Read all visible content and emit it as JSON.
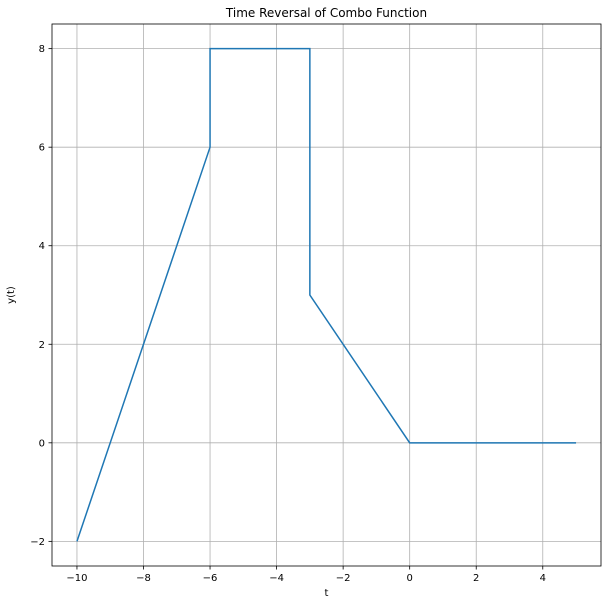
{
  "chart_data": {
    "type": "line",
    "title": "Time Reversal of Combo Function",
    "xlabel": "t",
    "ylabel": "y(t)",
    "xlim": [
      -10.75,
      5.75
    ],
    "ylim": [
      -2.5,
      8.5
    ],
    "xticks": [
      -10,
      -8,
      -6,
      -4,
      -2,
      0,
      2,
      4
    ],
    "xtick_labels": [
      "−10",
      "−8",
      "−6",
      "−4",
      "−2",
      "0",
      "2",
      "4"
    ],
    "yticks": [
      -2,
      0,
      2,
      4,
      6,
      8
    ],
    "ytick_labels": [
      "−2",
      "0",
      "2",
      "4",
      "6",
      "8"
    ],
    "grid": true,
    "series": [
      {
        "color": "#1f77b4",
        "x": [
          -10,
          -6,
          -6,
          -3,
          -3,
          0,
          5
        ],
        "y": [
          -2,
          6,
          8,
          8,
          3,
          0,
          0
        ]
      }
    ]
  }
}
